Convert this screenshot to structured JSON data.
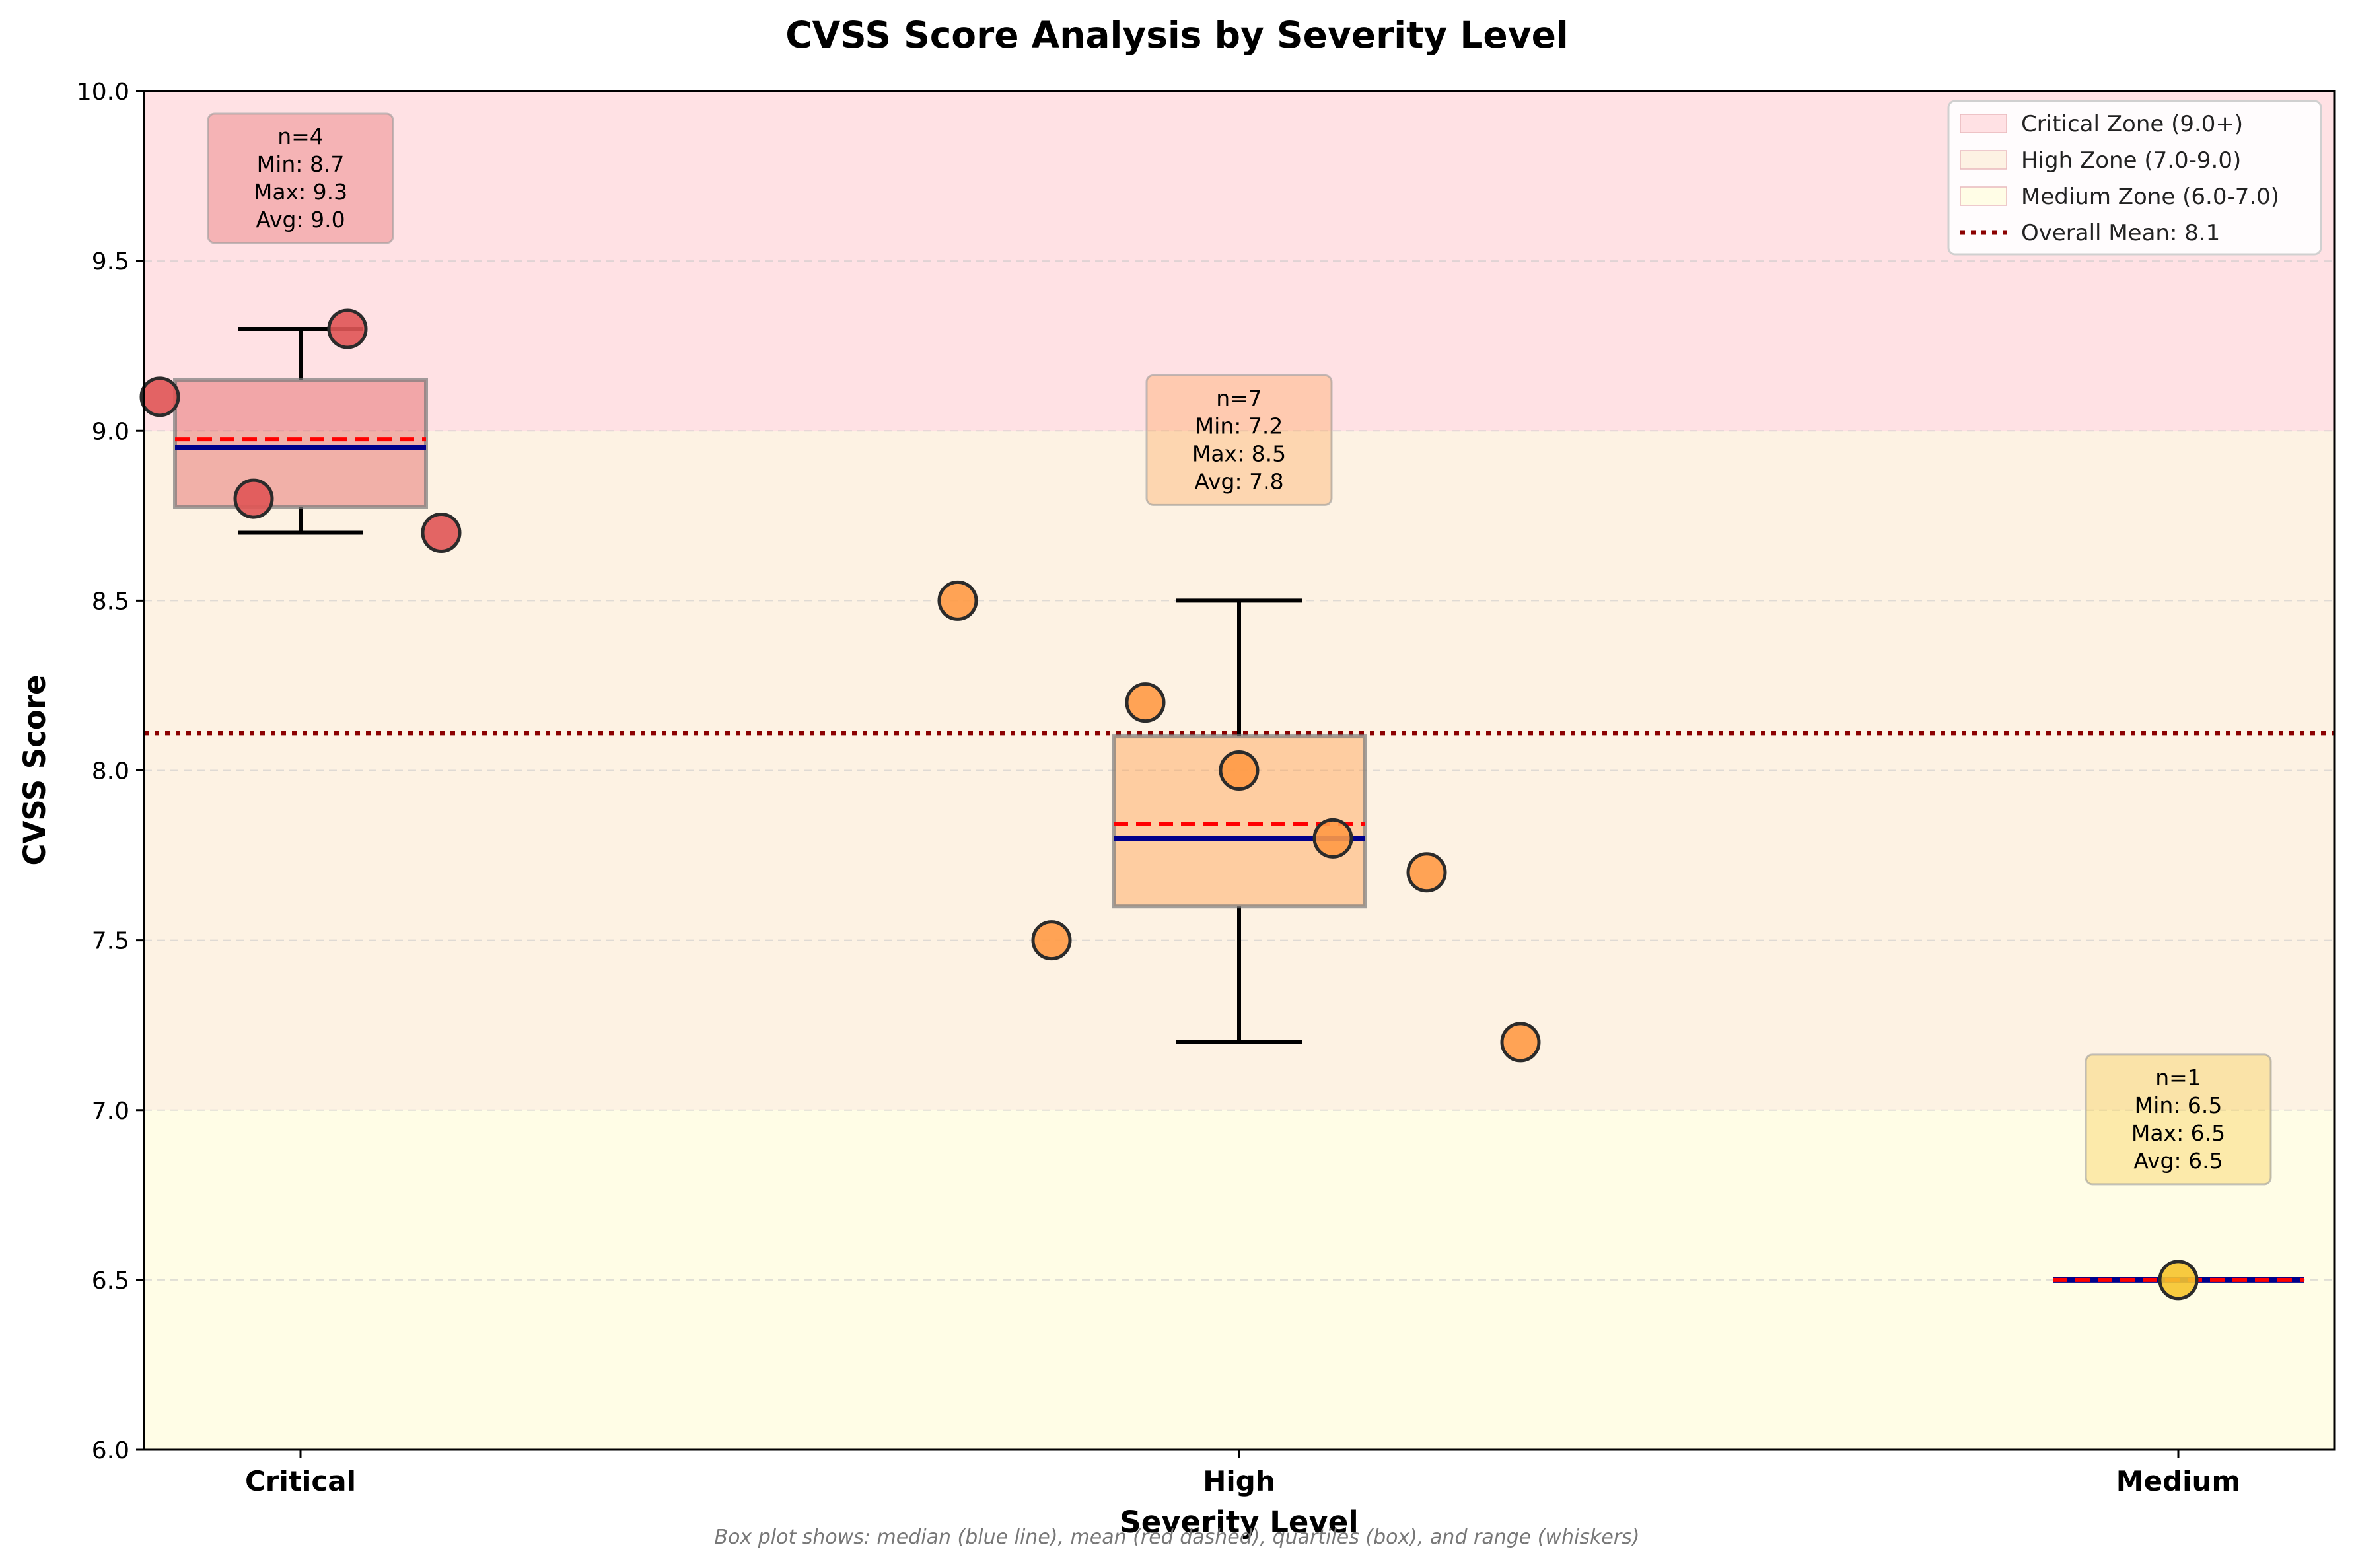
{
  "chart_data": {
    "type": "box",
    "title": "CVSS Score Analysis by Severity Level",
    "xlabel": "Severity Level",
    "ylabel": "CVSS Score",
    "ylim": [
      6.0,
      10.0
    ],
    "yticks": [
      "6.0",
      "6.5",
      "7.0",
      "7.5",
      "8.0",
      "8.5",
      "9.0",
      "9.5",
      "10.0"
    ],
    "grid": "y-dashed",
    "legend_position": "top-right",
    "categories": [
      "Critical",
      "High",
      "Medium"
    ],
    "groups": [
      {
        "name": "Critical",
        "color": "#e05555",
        "values": [
          9.1,
          8.8,
          9.3,
          8.7
        ],
        "q1": 8.775,
        "median": 8.95,
        "q3": 9.15,
        "mean": 8.975,
        "whisker_low": 8.7,
        "whisker_high": 9.3,
        "stats": [
          "n=4",
          "Min: 8.7",
          "Max: 9.3",
          "Avg: 9.0"
        ]
      },
      {
        "name": "High",
        "color": "#ff9a45",
        "values": [
          8.5,
          7.5,
          8.2,
          8.0,
          7.8,
          7.7,
          7.2
        ],
        "q1": 7.6,
        "median": 7.8,
        "q3": 8.1,
        "mean": 7.843,
        "whisker_low": 7.2,
        "whisker_high": 8.5,
        "stats": [
          "n=7",
          "Min: 7.2",
          "Max: 8.5",
          "Avg: 7.8"
        ]
      },
      {
        "name": "Medium",
        "color": "#f6c42c",
        "values": [
          6.5
        ],
        "q1": 6.5,
        "median": 6.5,
        "q3": 6.5,
        "mean": 6.5,
        "whisker_low": 6.5,
        "whisker_high": 6.5,
        "stats": [
          "n=1",
          "Min: 6.5",
          "Max: 6.5",
          "Avg: 6.5"
        ]
      }
    ],
    "zones": [
      {
        "label": "Critical Zone (9.0+)",
        "from": 9.0,
        "to": 10.0,
        "color": "#ffe1e4"
      },
      {
        "label": "High Zone (7.0-9.0)",
        "from": 7.0,
        "to": 9.0,
        "color": "#fdf2e3"
      },
      {
        "label": "Medium Zone (6.0-7.0)",
        "from": 6.0,
        "to": 7.0,
        "color": "#fffde6"
      }
    ],
    "overall_mean": {
      "label": "Overall Mean: 8.1",
      "value": 8.11,
      "color": "#8b0000"
    },
    "median_color": "#00008b",
    "mean_color": "#ff0000",
    "footnote": "Box plot shows: median (blue line), mean (red dashed), quartiles (box), and range (whiskers)"
  }
}
